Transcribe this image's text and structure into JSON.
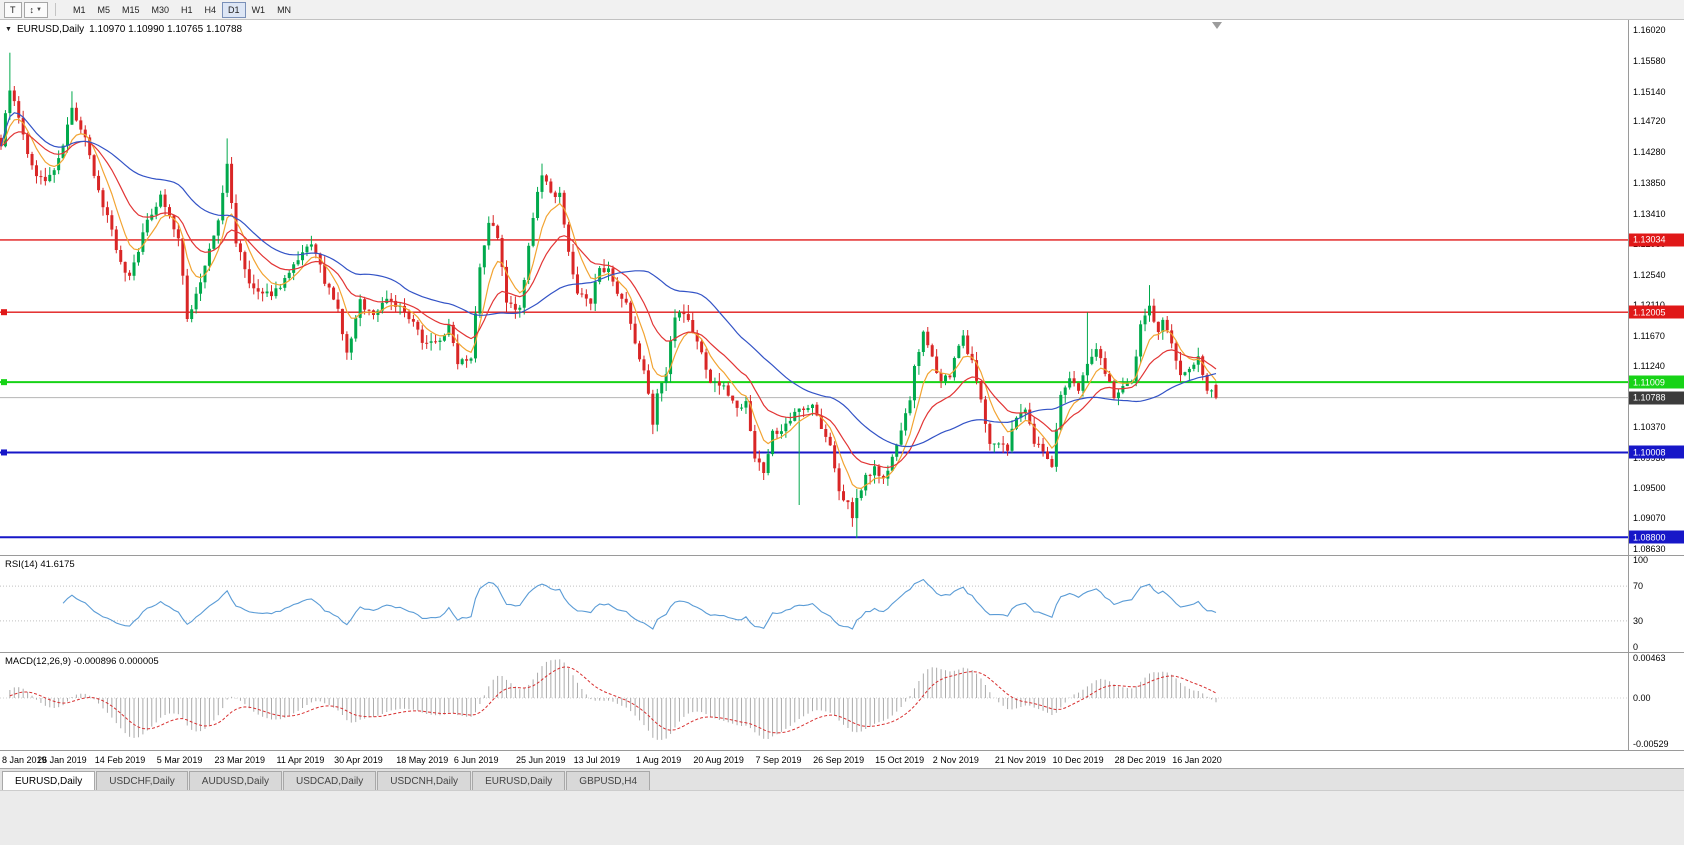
{
  "app": {
    "toolbar": {
      "tool_buttons": [
        {
          "glyph": "T"
        },
        {
          "glyph": "↕",
          "dropdown": "▼"
        }
      ],
      "timeframes": [
        "M1",
        "M5",
        "M15",
        "M30",
        "H1",
        "H4",
        "D1",
        "W1",
        "MN"
      ],
      "active_timeframe": "D1"
    },
    "one_click_toggle": "▼",
    "tabs": [
      "EURUSD,Daily",
      "USDCHF,Daily",
      "AUDUSD,Daily",
      "USDCAD,Daily",
      "USDCNH,Daily",
      "EURUSD,Daily",
      "GBPUSD,H4"
    ],
    "active_tab_index": 0
  },
  "chart_data": {
    "type": "candlestick",
    "symbol": "EURUSD",
    "period": "Daily",
    "title": {
      "symbol_period": "EURUSD,Daily",
      "ohlc_text": "1.10970 1.10990 1.10765 1.10788"
    },
    "ohlc": {
      "open": 1.1097,
      "high": 1.1099,
      "low": 1.10765,
      "close": 1.10788
    },
    "up_color": "#00a94c",
    "down_color": "#d92626",
    "y_axis": {
      "min": 1.08548,
      "max": 1.16165,
      "ticks": [
        1.1602,
        1.1558,
        1.1514,
        1.1472,
        1.1428,
        1.1385,
        1.1341,
        1.1298,
        1.1254,
        1.1211,
        1.1167,
        1.1124,
        1.108,
        1.1037,
        1.0993,
        1.095,
        1.0907,
        1.0863
      ]
    },
    "x_axis": {
      "labels": [
        "8 Jan 2019",
        "26 Jan 2019",
        "14 Feb 2019",
        "5 Mar 2019",
        "23 Mar 2019",
        "11 Apr 2019",
        "30 Apr 2019",
        "18 May 2019",
        "6 Jun 2019",
        "25 Jun 2019",
        "13 Jul 2019",
        "1 Aug 2019",
        "20 Aug 2019",
        "7 Sep 2019",
        "26 Sep 2019",
        "15 Oct 2019",
        "2 Nov 2019",
        "21 Nov 2019",
        "10 Dec 2019",
        "28 Dec 2019",
        "16 Jan 2020"
      ],
      "label_step_bars": 13.5
    },
    "bar_count": 275,
    "bars_width_frac": 0.7463,
    "price_path": [
      [
        0,
        1.144
      ],
      [
        2,
        1.152
      ],
      [
        4,
        1.1475
      ],
      [
        7,
        1.1405
      ],
      [
        10,
        1.1385
      ],
      [
        13,
        1.1415
      ],
      [
        16,
        1.149
      ],
      [
        19,
        1.1445
      ],
      [
        22,
        1.137
      ],
      [
        25,
        1.132
      ],
      [
        27,
        1.1268
      ],
      [
        29,
        1.1252
      ],
      [
        33,
        1.133
      ],
      [
        36,
        1.1368
      ],
      [
        40,
        1.1305
      ],
      [
        42,
        1.119
      ],
      [
        45,
        1.1245
      ],
      [
        49,
        1.133
      ],
      [
        51,
        1.141
      ],
      [
        53,
        1.1302
      ],
      [
        56,
        1.124
      ],
      [
        59,
        1.1222
      ],
      [
        62,
        1.1232
      ],
      [
        65,
        1.1255
      ],
      [
        67,
        1.1272
      ],
      [
        70,
        1.13
      ],
      [
        73,
        1.1245
      ],
      [
        76,
        1.1202
      ],
      [
        78,
        1.114
      ],
      [
        81,
        1.1215
      ],
      [
        84,
        1.1196
      ],
      [
        87,
        1.1222
      ],
      [
        90,
        1.1206
      ],
      [
        93,
        1.1182
      ],
      [
        95,
        1.1162
      ],
      [
        98,
        1.1156
      ],
      [
        101,
        1.1178
      ],
      [
        103,
        1.1132
      ],
      [
        106,
        1.1138
      ],
      [
        108,
        1.1268
      ],
      [
        110,
        1.133
      ],
      [
        112,
        1.131
      ],
      [
        114,
        1.1212
      ],
      [
        117,
        1.1202
      ],
      [
        119,
        1.129
      ],
      [
        121,
        1.1372
      ],
      [
        122,
        1.1398
      ],
      [
        124,
        1.1366
      ],
      [
        126,
        1.1372
      ],
      [
        128,
        1.1282
      ],
      [
        130,
        1.1228
      ],
      [
        133,
        1.1212
      ],
      [
        135,
        1.1268
      ],
      [
        137,
        1.1258
      ],
      [
        139,
        1.1222
      ],
      [
        141,
        1.121
      ],
      [
        143,
        1.1152
      ],
      [
        145,
        1.1118
      ],
      [
        147,
        1.1044
      ],
      [
        148,
        1.1086
      ],
      [
        150,
        1.1112
      ],
      [
        152,
        1.1198
      ],
      [
        154,
        1.1202
      ],
      [
        156,
        1.1172
      ],
      [
        158,
        1.1142
      ],
      [
        160,
        1.1102
      ],
      [
        162,
        1.1098
      ],
      [
        164,
        1.1086
      ],
      [
        166,
        1.1062
      ],
      [
        168,
        1.1078
      ],
      [
        170,
        1.0992
      ],
      [
        172,
        1.0972
      ],
      [
        174,
        1.1032
      ],
      [
        176,
        1.1028
      ],
      [
        178,
        1.1046
      ],
      [
        180,
        1.1062
      ],
      [
        183,
        1.1072
      ],
      [
        185,
        1.1032
      ],
      [
        187,
        1.1012
      ],
      [
        189,
        1.0942
      ],
      [
        191,
        1.0932
      ],
      [
        192,
        1.0902
      ],
      [
        193,
        1.0932
      ],
      [
        195,
        1.0966
      ],
      [
        197,
        1.098
      ],
      [
        199,
        1.0962
      ],
      [
        201,
        1.0992
      ],
      [
        203,
        1.1032
      ],
      [
        205,
        1.1072
      ],
      [
        206,
        1.1126
      ],
      [
        208,
        1.1168
      ],
      [
        210,
        1.1132
      ],
      [
        212,
        1.1106
      ],
      [
        214,
        1.1112
      ],
      [
        216,
        1.115
      ],
      [
        217,
        1.1164
      ],
      [
        219,
        1.1128
      ],
      [
        221,
        1.1072
      ],
      [
        223,
        1.1018
      ],
      [
        225,
        1.1012
      ],
      [
        227,
        1.1006
      ],
      [
        229,
        1.1052
      ],
      [
        231,
        1.106
      ],
      [
        233,
        1.1018
      ],
      [
        235,
        1.1002
      ],
      [
        237,
        1.0982
      ],
      [
        239,
        1.108
      ],
      [
        241,
        1.1102
      ],
      [
        243,
        1.1092
      ],
      [
        245,
        1.1132
      ],
      [
        247,
        1.1146
      ],
      [
        249,
        1.1118
      ],
      [
        251,
        1.108
      ],
      [
        253,
        1.109
      ],
      [
        255,
        1.1098
      ],
      [
        257,
        1.118
      ],
      [
        259,
        1.1212
      ],
      [
        261,
        1.1172
      ],
      [
        262,
        1.1192
      ],
      [
        264,
        1.1152
      ],
      [
        266,
        1.1108
      ],
      [
        268,
        1.1122
      ],
      [
        270,
        1.1136
      ],
      [
        272,
        1.109
      ],
      [
        274,
        1.10788
      ]
    ],
    "wick_overrides": [
      [
        2,
        "h",
        1.157
      ],
      [
        16,
        "h",
        1.1515
      ],
      [
        51,
        "h",
        1.1448
      ],
      [
        122,
        "h",
        1.1412
      ],
      [
        147,
        "l",
        1.1027
      ],
      [
        180,
        "l",
        1.0926
      ],
      [
        193,
        "l",
        1.0879
      ],
      [
        245,
        "h",
        1.12
      ],
      [
        259,
        "h",
        1.1239
      ]
    ],
    "hlines": [
      {
        "price": 1.13034,
        "label": "1.13034",
        "color": "#e01818",
        "text": "#ffffff",
        "handle": false,
        "width": 1.4
      },
      {
        "price": 1.12005,
        "label": "1.12005",
        "color": "#e01818",
        "text": "#ffffff",
        "handle": true,
        "width": 1.4
      },
      {
        "price": 1.11009,
        "label": "1.11009",
        "color": "#17d317",
        "text": "#ffffff",
        "handle": true,
        "width": 2
      },
      {
        "price": 1.10008,
        "label": "1.10008",
        "color": "#1717c8",
        "text": "#ffffff",
        "handle": true,
        "width": 2
      },
      {
        "price": 1.088,
        "label": "1.08800",
        "color": "#1717c8",
        "text": "#ffffff",
        "handle": false,
        "width": 2
      }
    ],
    "current_price": {
      "value": 1.10788,
      "label": "1.10788",
      "badge_bg": "#3c3c3c",
      "text": "#ffffff",
      "line_color": "#b4b4b4"
    },
    "moving_averages": [
      {
        "period": 7,
        "method": "ema",
        "color": "#f2a432"
      },
      {
        "period": 18,
        "method": "ema",
        "color": "#e23636"
      },
      {
        "period": 40,
        "method": "sma",
        "color": "#3353c6"
      }
    ],
    "indicators": [
      {
        "name": "RSI",
        "label": "RSI(14) 41.6175",
        "value": 41.6175,
        "period": 14,
        "color": "#5b9cd6",
        "levels": [
          70,
          30
        ],
        "level_color": "#c0c0c0",
        "axis_ticks": [
          "100",
          "70",
          "30",
          "0"
        ]
      },
      {
        "name": "MACD",
        "label": "MACD(12,26,9) -0.000896 0.000005",
        "macd": -0.000896,
        "signal": 5e-06,
        "fast": 12,
        "slow": 26,
        "signal_period": 9,
        "hist_color": "#ababab",
        "signal_color": "#d83030",
        "axis_ticks": [
          "0.00463",
          "0.00",
          "-0.00529"
        ],
        "vmax": 0.0052,
        "vmin": -0.006
      }
    ]
  }
}
